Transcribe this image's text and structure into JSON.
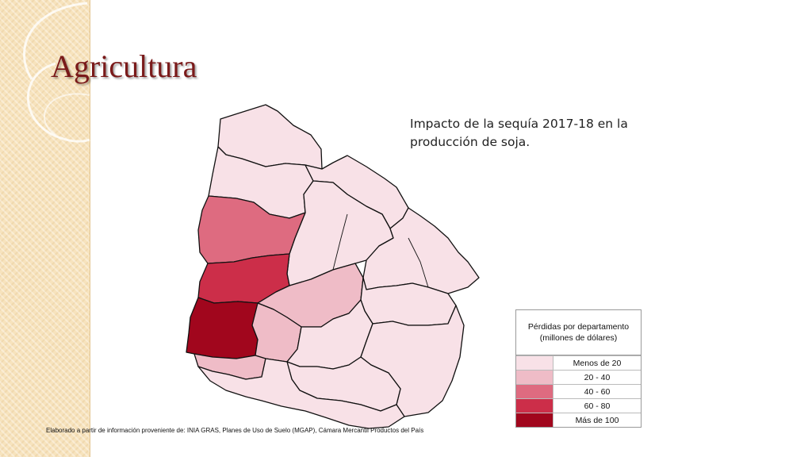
{
  "slide": {
    "title": "Agricultura"
  },
  "map": {
    "title": "Impacto de la sequía 2017-18 en la producción de soja.",
    "regions": [
      {
        "name": "north-top",
        "class": "Menos de 20"
      },
      {
        "name": "north-east",
        "class": "Menos de 20"
      },
      {
        "name": "north-west",
        "class": "Menos de 20"
      },
      {
        "name": "center-north",
        "class": "Menos de 20"
      },
      {
        "name": "paysandu",
        "class": "40 - 60"
      },
      {
        "name": "rio-negro",
        "class": "60 - 80"
      },
      {
        "name": "soriano",
        "class": "Más de 100"
      },
      {
        "name": "center",
        "class": "20 - 40"
      },
      {
        "name": "flores",
        "class": "20 - 40"
      },
      {
        "name": "colonia",
        "class": "20 - 40"
      },
      {
        "name": "east-center",
        "class": "Menos de 20"
      },
      {
        "name": "east",
        "class": "Menos de 20"
      },
      {
        "name": "south-center",
        "class": "Menos de 20"
      },
      {
        "name": "south-east",
        "class": "Menos de 20"
      },
      {
        "name": "south",
        "class": "Menos de 20"
      },
      {
        "name": "south-coast",
        "class": "Menos de 20"
      }
    ]
  },
  "legend": {
    "title": "Pérdidas por departamento (millones de dólares)",
    "items": [
      {
        "label": "Menos de 20",
        "color": "#f8e1e7"
      },
      {
        "label": "20 - 40",
        "color": "#efbcc7"
      },
      {
        "label": "40 - 60",
        "color": "#de6b80"
      },
      {
        "label": "60 - 80",
        "color": "#cc2e49"
      },
      {
        "label": "Más de 100",
        "color": "#a1061d"
      }
    ]
  },
  "source": "Elaborado a partir de información proveniente de: INIA GRAS, Planes de Uso de Suelo (MGAP), Cámara Mercantil Productos del País"
}
